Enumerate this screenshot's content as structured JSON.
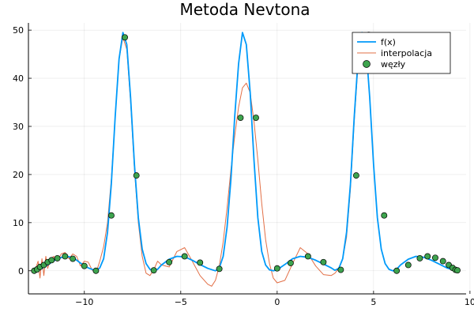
{
  "chart_data": {
    "type": "line",
    "title": "Metoda Nevtona",
    "xlabel": "",
    "ylabel": "",
    "xlim": [
      -12.9,
      9.8
    ],
    "ylim": [
      -4.8,
      51.5
    ],
    "x_ticks": [
      -10,
      -5,
      0,
      5,
      10
    ],
    "x_tick_labels": [
      "−10",
      "−5",
      "0",
      "5",
      "10"
    ],
    "y_ticks": [
      0,
      10,
      20,
      30,
      40,
      50
    ],
    "y_tick_labels": [
      "0",
      "10",
      "20",
      "30",
      "40",
      "50"
    ],
    "grid": true,
    "legend_position": "top-right",
    "colors": {
      "f": "#009AFA",
      "interp": "#E26F46",
      "nodes": "#3EA44E",
      "nodes_edge": "#000000"
    },
    "series": [
      {
        "name": "f(x)",
        "type": "line",
        "x": [
          -12.6,
          -12.2,
          -11.8,
          -11.4,
          -11.0,
          -10.6,
          -10.2,
          -9.8,
          -9.4,
          -9.2,
          -9.0,
          -8.8,
          -8.6,
          -8.4,
          -8.2,
          -8.0,
          -7.8,
          -7.6,
          -7.4,
          -7.2,
          -7.0,
          -6.8,
          -6.6,
          -6.4,
          -6.2,
          -6.0,
          -5.6,
          -5.2,
          -4.8,
          -4.4,
          -4.0,
          -3.6,
          -3.2,
          -3.0,
          -2.8,
          -2.6,
          -2.4,
          -2.2,
          -2.0,
          -1.8,
          -1.6,
          -1.4,
          -1.2,
          -1.0,
          -0.8,
          -0.6,
          -0.4,
          -0.2,
          0.0,
          0.4,
          0.8,
          1.2,
          1.6,
          2.0,
          2.4,
          2.8,
          3.0,
          3.2,
          3.4,
          3.6,
          3.8,
          4.0,
          4.2,
          4.4,
          4.6,
          4.8,
          5.0,
          5.2,
          5.4,
          5.6,
          5.8,
          6.0,
          6.2,
          6.4,
          6.8,
          7.2,
          7.6,
          8.0,
          8.4,
          8.8,
          9.2,
          9.4
        ],
        "y": [
          0.0,
          0.5,
          1.5,
          2.5,
          3.0,
          2.8,
          1.6,
          0.6,
          0.0,
          0.6,
          2.5,
          8.0,
          18.0,
          32.0,
          44.0,
          49.5,
          47.0,
          36.0,
          22.0,
          11.0,
          4.5,
          1.5,
          0.3,
          0.0,
          0.3,
          1.2,
          2.4,
          3.0,
          2.9,
          2.2,
          1.3,
          0.5,
          0.0,
          0.6,
          3.0,
          9.0,
          19.0,
          32.0,
          43.0,
          49.5,
          47.0,
          37.0,
          23.0,
          11.0,
          4.0,
          1.2,
          0.2,
          0.0,
          0.2,
          1.3,
          2.5,
          3.0,
          2.8,
          2.2,
          1.4,
          0.6,
          0.1,
          0.5,
          2.5,
          8.0,
          18.0,
          32.0,
          44.0,
          49.5,
          47.0,
          36.0,
          22.0,
          11.0,
          4.5,
          1.5,
          0.3,
          0.0,
          0.3,
          1.2,
          2.4,
          3.0,
          2.8,
          2.2,
          1.4,
          0.6,
          0.1,
          0.0
        ]
      },
      {
        "name": "interpolacja",
        "type": "line",
        "x": [
          -12.6,
          -12.4,
          -12.3,
          -12.2,
          -12.1,
          -12.0,
          -11.9,
          -11.8,
          -11.6,
          -11.4,
          -11.2,
          -11.0,
          -10.8,
          -10.6,
          -10.4,
          -10.2,
          -10.0,
          -9.8,
          -9.6,
          -9.4,
          -9.2,
          -9.0,
          -8.8,
          -8.6,
          -8.4,
          -8.2,
          -8.0,
          -7.8,
          -7.6,
          -7.4,
          -7.2,
          -7.0,
          -6.8,
          -6.6,
          -6.4,
          -6.2,
          -6.0,
          -5.6,
          -5.2,
          -4.8,
          -4.4,
          -4.0,
          -3.6,
          -3.4,
          -3.2,
          -3.0,
          -2.8,
          -2.6,
          -2.4,
          -2.2,
          -2.0,
          -1.8,
          -1.6,
          -1.4,
          -1.2,
          -1.0,
          -0.8,
          -0.6,
          -0.4,
          -0.2,
          0.0,
          0.4,
          0.8,
          1.2,
          1.6,
          2.0,
          2.4,
          2.8,
          3.0,
          3.2,
          3.4,
          3.6,
          3.8,
          4.0,
          4.2,
          4.4,
          4.6,
          4.8,
          5.0,
          5.2,
          5.4,
          5.6,
          5.8,
          6.0,
          6.2,
          6.4,
          6.8,
          7.2,
          7.6,
          8.0,
          8.4,
          8.8,
          9.2,
          9.4
        ],
        "y": [
          -0.5,
          2.0,
          -1.5,
          2.5,
          -1.0,
          3.0,
          0.5,
          2.0,
          3.0,
          2.0,
          3.5,
          3.8,
          2.5,
          3.5,
          3.0,
          1.0,
          2.0,
          1.8,
          0.2,
          -0.5,
          2.0,
          5.0,
          10.0,
          19.0,
          32.0,
          44.0,
          48.5,
          46.0,
          35.0,
          21.0,
          10.0,
          3.0,
          -0.5,
          -1.0,
          0.2,
          2.0,
          1.2,
          0.8,
          4.0,
          4.8,
          2.0,
          -1.0,
          -2.8,
          -3.2,
          -2.0,
          1.0,
          6.0,
          13.0,
          21.0,
          28.0,
          34.0,
          38.0,
          39.0,
          37.0,
          31.0,
          23.0,
          14.0,
          6.5,
          1.5,
          -1.5,
          -2.5,
          -2.0,
          1.5,
          4.8,
          3.5,
          1.0,
          -0.8,
          -1.0,
          -0.5,
          0.5,
          2.5,
          7.0,
          17.0,
          31.0,
          43.0,
          49.0,
          47.0,
          36.0,
          22.0,
          11.0,
          4.5,
          1.5,
          0.3,
          0.0,
          0.3,
          1.2,
          2.4,
          3.0,
          2.8,
          2.2,
          1.4,
          0.6,
          0.1,
          0.0
        ]
      },
      {
        "name": "węzły",
        "type": "scatter",
        "x": [
          -12.6,
          -12.45,
          -12.3,
          -12.1,
          -11.9,
          -11.7,
          -11.4,
          -11.0,
          -10.6,
          -10.0,
          -9.4,
          -8.6,
          -7.9,
          -7.3,
          -6.4,
          -5.6,
          -4.8,
          -4.0,
          -3.0,
          -1.9,
          -1.1,
          0.0,
          0.7,
          1.6,
          2.4,
          3.3,
          4.1,
          4.75,
          5.55,
          6.2,
          6.8,
          7.4,
          7.8,
          8.2,
          8.6,
          8.9,
          9.1,
          9.25,
          9.35
        ],
        "y": [
          0.0,
          0.3,
          0.8,
          1.2,
          1.8,
          2.2,
          2.6,
          3.0,
          2.5,
          1.0,
          0.0,
          11.5,
          48.5,
          19.8,
          0.1,
          1.8,
          3.0,
          1.7,
          0.4,
          31.8,
          31.8,
          0.5,
          1.6,
          3.0,
          1.8,
          0.2,
          19.8,
          49.0,
          11.5,
          0.0,
          1.2,
          2.6,
          3.0,
          2.7,
          2.0,
          1.2,
          0.6,
          0.2,
          0.1
        ]
      }
    ]
  }
}
